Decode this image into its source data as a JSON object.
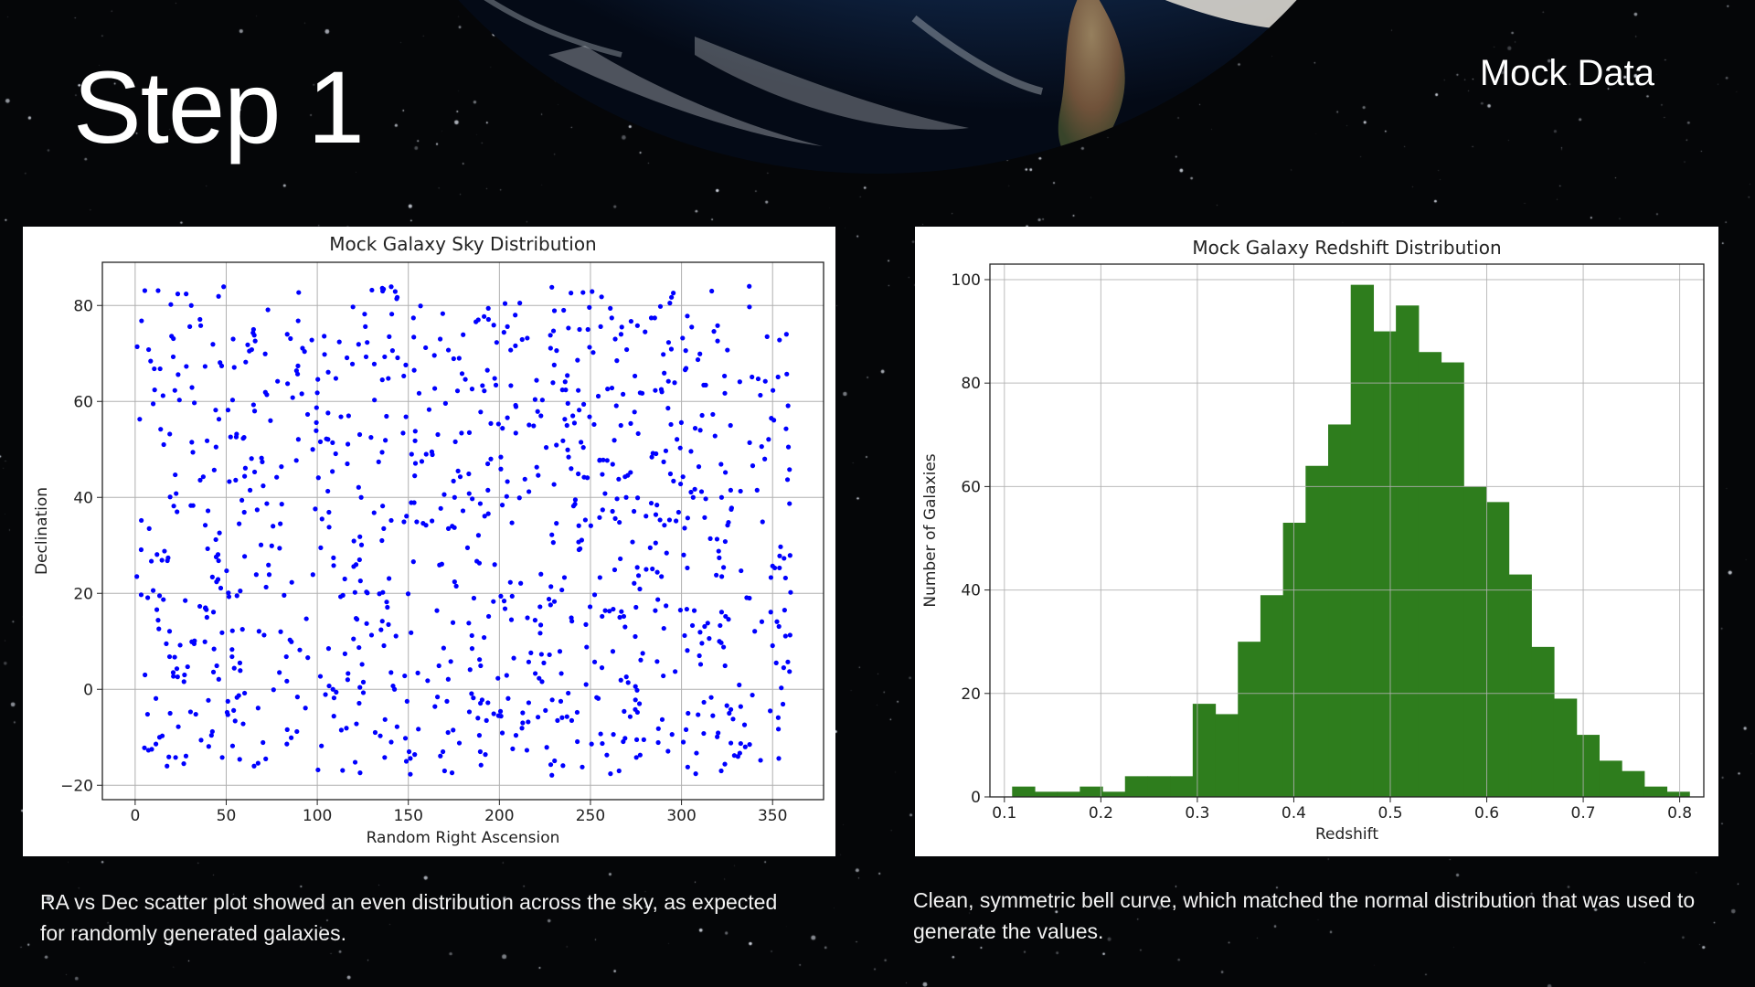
{
  "slide": {
    "title": "Step 1",
    "subtitle": "Mock Data",
    "caption_left": "RA vs Dec scatter plot showed an even distribution across the sky, as expected for randomly generated galaxies.",
    "caption_right": "Clean, symmetric bell curve, which matched the normal distribution that was used to generate the values."
  },
  "colors": {
    "background": "#050608",
    "scatter_point": "#0000ff",
    "histogram_bar": "#2e7d1d",
    "grid": "#b0b0b0"
  },
  "chart_data": [
    {
      "type": "scatter",
      "title": "Mock Galaxy Sky Distribution",
      "xlabel": "Random Right Ascension",
      "ylabel": "Declination",
      "xlim": [
        -18,
        378
      ],
      "ylim": [
        -23,
        89
      ],
      "xticks": [
        0,
        50,
        100,
        150,
        200,
        250,
        300,
        350
      ],
      "yticks": [
        -20,
        0,
        20,
        40,
        60,
        80
      ],
      "grid": true,
      "point_count": 1000,
      "distribution": "uniform",
      "x_range": [
        0,
        360
      ],
      "y_range": [
        -18,
        84
      ],
      "points": []
    },
    {
      "type": "bar",
      "subtype": "histogram",
      "title": "Mock Galaxy Redshift Distribution",
      "xlabel": "Redshift",
      "ylabel": "Number of Galaxies",
      "xlim": [
        0.085,
        0.825
      ],
      "ylim": [
        0,
        103
      ],
      "xticks": [
        0.1,
        0.2,
        0.3,
        0.4,
        0.5,
        0.6,
        0.7,
        0.8
      ],
      "yticks": [
        0,
        20,
        40,
        60,
        80,
        100
      ],
      "grid": true,
      "bin_start": 0.108,
      "bin_width": 0.0234,
      "values": [
        2,
        1,
        1,
        2,
        1,
        4,
        4,
        4,
        18,
        16,
        30,
        39,
        53,
        64,
        72,
        99,
        90,
        95,
        86,
        84,
        60,
        57,
        43,
        29,
        19,
        12,
        7,
        5,
        2,
        1
      ]
    }
  ]
}
